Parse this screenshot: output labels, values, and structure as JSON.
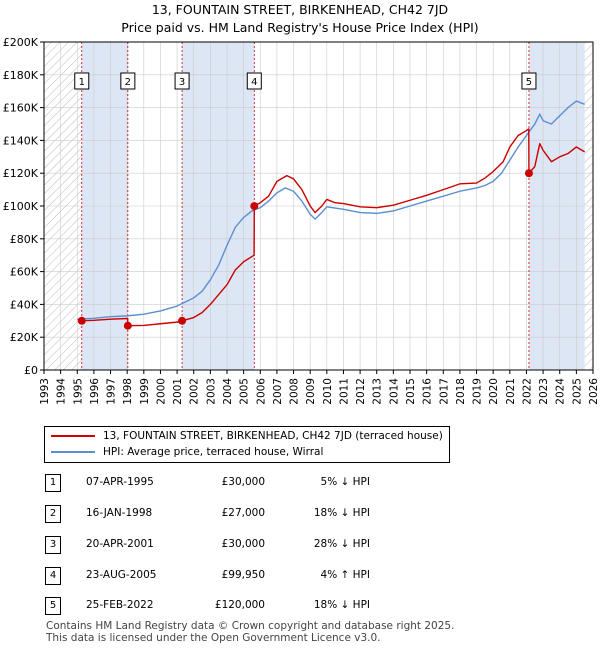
{
  "header": {
    "title_line1": "13, FOUNTAIN STREET, BIRKENHEAD, CH42 7JD",
    "title_line2": "Price paid vs. HM Land Registry's House Price Index (HPI)"
  },
  "colors": {
    "property_line": "#cc0000",
    "hpi_line": "#5b8fd0",
    "highlight_fill": "#dde6f5",
    "hatch": "#bbbbbb",
    "grid": "#cccccc"
  },
  "chart_data": {
    "type": "line",
    "xlim": [
      1993,
      2026
    ],
    "ylim": [
      0,
      200000
    ],
    "x_ticks": [
      "1993",
      "1994",
      "1995",
      "1996",
      "1997",
      "1998",
      "1999",
      "2000",
      "2001",
      "2002",
      "2003",
      "2004",
      "2005",
      "2006",
      "2007",
      "2008",
      "2009",
      "2010",
      "2011",
      "2012",
      "2013",
      "2014",
      "2015",
      "2016",
      "2017",
      "2018",
      "2019",
      "2020",
      "2021",
      "2022",
      "2023",
      "2024",
      "2025",
      "2026"
    ],
    "y_ticks": [
      {
        "value": 0,
        "label": "£0"
      },
      {
        "value": 20000,
        "label": "£20K"
      },
      {
        "value": 40000,
        "label": "£40K"
      },
      {
        "value": 60000,
        "label": "£60K"
      },
      {
        "value": 80000,
        "label": "£80K"
      },
      {
        "value": 100000,
        "label": "£100K"
      },
      {
        "value": 120000,
        "label": "£120K"
      },
      {
        "value": 140000,
        "label": "£140K"
      },
      {
        "value": 160000,
        "label": "£160K"
      },
      {
        "value": 180000,
        "label": "£180K"
      },
      {
        "value": 200000,
        "label": "£200K"
      }
    ],
    "hatched_ranges": [
      [
        1993,
        1995.27
      ],
      [
        2025.5,
        2026
      ]
    ],
    "highlight_ranges": [
      [
        1995.27,
        1998.04
      ],
      [
        2001.3,
        2005.64
      ],
      [
        2022.15,
        2025.5
      ]
    ],
    "series": [
      {
        "name": "13, FOUNTAIN STREET, BIRKENHEAD, CH42 7JD (terraced house)",
        "color": "#cc0000",
        "points": [
          [
            1995.27,
            30000
          ],
          [
            1996,
            30300
          ],
          [
            1997,
            31000
          ],
          [
            1998.03,
            31400
          ],
          [
            1998.04,
            27000
          ],
          [
            1999,
            27200
          ],
          [
            2000,
            28200
          ],
          [
            2001.29,
            29500
          ],
          [
            2001.3,
            30000
          ],
          [
            2002,
            32000
          ],
          [
            2002.5,
            35000
          ],
          [
            2003,
            40000
          ],
          [
            2003.5,
            46000
          ],
          [
            2004,
            52000
          ],
          [
            2004.5,
            61000
          ],
          [
            2005,
            66000
          ],
          [
            2005.63,
            70000
          ],
          [
            2005.64,
            99950
          ],
          [
            2006,
            102000
          ],
          [
            2006.5,
            106000
          ],
          [
            2007,
            115000
          ],
          [
            2007.6,
            118500
          ],
          [
            2008,
            116500
          ],
          [
            2008.5,
            110000
          ],
          [
            2009,
            100000
          ],
          [
            2009.3,
            96000
          ],
          [
            2009.7,
            100000
          ],
          [
            2010,
            104000
          ],
          [
            2010.5,
            102000
          ],
          [
            2011,
            101500
          ],
          [
            2012,
            99500
          ],
          [
            2013,
            99000
          ],
          [
            2014,
            100500
          ],
          [
            2015,
            103500
          ],
          [
            2016,
            106500
          ],
          [
            2017,
            110000
          ],
          [
            2018,
            113500
          ],
          [
            2019,
            114000
          ],
          [
            2019.5,
            117000
          ],
          [
            2020,
            121000
          ],
          [
            2020.6,
            127000
          ],
          [
            2021,
            136000
          ],
          [
            2021.5,
            143000
          ],
          [
            2022,
            146000
          ],
          [
            2022.14,
            147000
          ],
          [
            2022.15,
            120000
          ],
          [
            2022.5,
            124000
          ],
          [
            2022.8,
            138000
          ],
          [
            2023,
            134000
          ],
          [
            2023.5,
            127000
          ],
          [
            2024,
            130000
          ],
          [
            2024.5,
            132000
          ],
          [
            2025,
            136000
          ],
          [
            2025.5,
            133000
          ]
        ]
      },
      {
        "name": "HPI: Average price, terraced house, Wirral",
        "color": "#5b8fd0",
        "points": [
          [
            1995,
            31000
          ],
          [
            1996,
            31500
          ],
          [
            1997,
            32500
          ],
          [
            1998,
            33000
          ],
          [
            1999,
            34000
          ],
          [
            2000,
            36000
          ],
          [
            2001,
            39000
          ],
          [
            2002,
            44000
          ],
          [
            2002.5,
            48000
          ],
          [
            2003,
            55000
          ],
          [
            2003.5,
            64000
          ],
          [
            2004,
            76000
          ],
          [
            2004.5,
            87000
          ],
          [
            2005,
            93000
          ],
          [
            2005.5,
            97000
          ],
          [
            2006,
            99000
          ],
          [
            2006.5,
            103000
          ],
          [
            2007,
            108000
          ],
          [
            2007.5,
            111000
          ],
          [
            2008,
            109000
          ],
          [
            2008.5,
            103000
          ],
          [
            2009,
            95000
          ],
          [
            2009.3,
            92000
          ],
          [
            2009.7,
            96000
          ],
          [
            2010,
            99500
          ],
          [
            2011,
            98000
          ],
          [
            2012,
            96000
          ],
          [
            2013,
            95500
          ],
          [
            2014,
            97000
          ],
          [
            2015,
            100000
          ],
          [
            2016,
            103000
          ],
          [
            2017,
            106000
          ],
          [
            2018,
            109000
          ],
          [
            2019,
            111000
          ],
          [
            2019.5,
            112500
          ],
          [
            2020,
            115000
          ],
          [
            2020.5,
            120000
          ],
          [
            2021,
            128000
          ],
          [
            2021.5,
            136000
          ],
          [
            2022,
            143000
          ],
          [
            2022.5,
            150000
          ],
          [
            2022.8,
            156000
          ],
          [
            2023,
            152000
          ],
          [
            2023.5,
            150000
          ],
          [
            2024,
            155000
          ],
          [
            2024.5,
            160000
          ],
          [
            2025,
            164000
          ],
          [
            2025.5,
            162000
          ]
        ]
      }
    ],
    "sales": [
      {
        "label": "1",
        "x": 1995.27,
        "price": 30000
      },
      {
        "label": "2",
        "x": 1998.04,
        "price": 27000
      },
      {
        "label": "3",
        "x": 2001.3,
        "price": 30000
      },
      {
        "label": "4",
        "x": 2005.64,
        "price": 99950
      },
      {
        "label": "5",
        "x": 2022.15,
        "price": 120000
      }
    ]
  },
  "legend": {
    "property": "13, FOUNTAIN STREET, BIRKENHEAD, CH42 7JD (terraced house)",
    "hpi": "HPI: Average price, terraced house, Wirral"
  },
  "transactions": [
    {
      "num": "1",
      "date": "07-APR-1995",
      "price": "£30,000",
      "hpi": "5% ↓ HPI"
    },
    {
      "num": "2",
      "date": "16-JAN-1998",
      "price": "£27,000",
      "hpi": "18% ↓ HPI"
    },
    {
      "num": "3",
      "date": "20-APR-2001",
      "price": "£30,000",
      "hpi": "28% ↓ HPI"
    },
    {
      "num": "4",
      "date": "23-AUG-2005",
      "price": "£99,950",
      "hpi": "4% ↑ HPI"
    },
    {
      "num": "5",
      "date": "25-FEB-2022",
      "price": "£120,000",
      "hpi": "18% ↓ HPI"
    }
  ],
  "footer": {
    "line1": "Contains HM Land Registry data © Crown copyright and database right 2025.",
    "line2": "This data is licensed under the Open Government Licence v3.0."
  }
}
